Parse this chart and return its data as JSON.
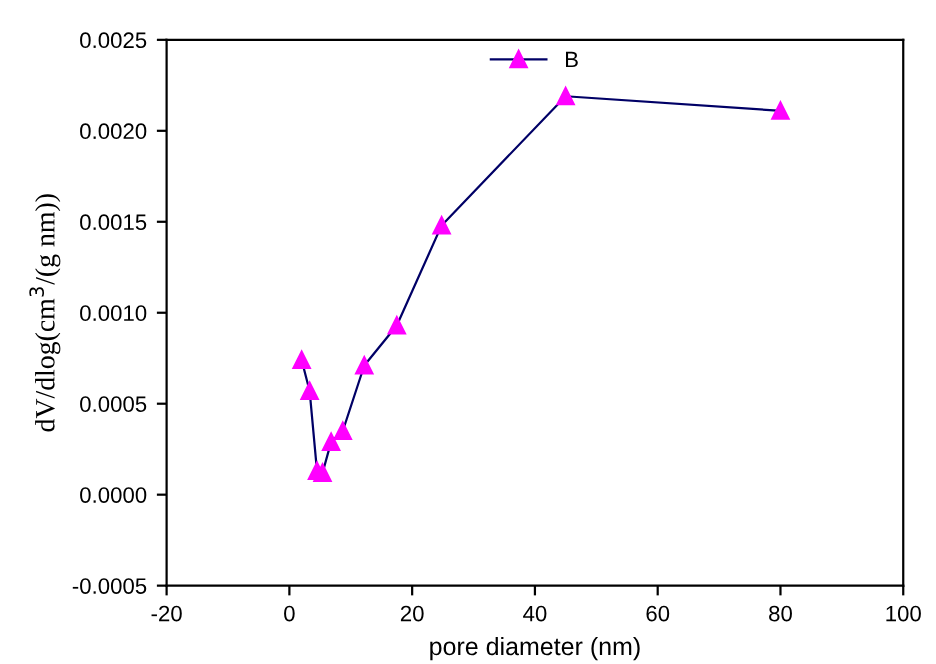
{
  "chart_data": {
    "type": "line",
    "xlabel": "pore diameter (nm)",
    "ylabel": "dV/dlog(cm$^{3}$/(g nm))",
    "series": [
      {
        "name": "B",
        "color": "#ff00ff",
        "x": [
          2.0,
          3.3,
          4.5,
          5.4,
          6.8,
          8.7,
          12.2,
          17.5,
          24.8,
          45.0,
          80.0
        ],
        "values": [
          0.00074,
          0.00057,
          0.00013,
          0.00012,
          0.00029,
          0.00035,
          0.00071,
          0.00093,
          0.00148,
          0.00219,
          0.00211
        ]
      }
    ],
    "xlim": [
      -20,
      100
    ],
    "xticks": [
      -20,
      0,
      20,
      40,
      60,
      80,
      100
    ],
    "ylim": [
      -0.0005,
      0.0025
    ],
    "yticks": [
      {
        "value": -0.0005,
        "label": "-0.0005"
      },
      {
        "value": 0,
        "label": "0.0000"
      },
      {
        "value": 0.0005,
        "label": "0.0005"
      },
      {
        "value": 0.001,
        "label": "0.0010"
      },
      {
        "value": 0.0015,
        "label": "0.0015"
      },
      {
        "value": 0.002,
        "label": "0.0020"
      },
      {
        "value": 0.0025,
        "label": "0.0025"
      }
    ],
    "marker": "triangle",
    "line_style": "solid",
    "legend": "top",
    "grid": false
  }
}
